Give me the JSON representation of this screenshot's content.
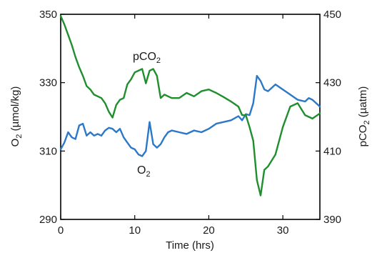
{
  "chart_data": {
    "type": "line",
    "xlabel": "Time (hrs)",
    "ylabel_left": {
      "main": "O",
      "sub": "2",
      "rest": " (µmol/kg)"
    },
    "ylabel_right": {
      "main": "pCO",
      "sub": "2",
      "rest": " (µatm)"
    },
    "xlim": [
      0,
      35
    ],
    "ylim_left": [
      290,
      350
    ],
    "ylim_right": [
      390,
      450
    ],
    "x_ticks": [
      0,
      10,
      20,
      30
    ],
    "y_ticks_left": [
      290,
      310,
      330,
      350
    ],
    "y_ticks_right": [
      390,
      410,
      430,
      450
    ],
    "grid": false,
    "colors": {
      "o2": "#2b78c9",
      "pco2": "#1f8f2e"
    },
    "annotations": [
      {
        "series": "pco2",
        "main": "pCO",
        "sub": "2"
      },
      {
        "series": "o2",
        "main": "O",
        "sub": "2"
      }
    ],
    "series": [
      {
        "key": "o2",
        "axis": "left",
        "x": [
          0,
          0.5,
          1,
          1.5,
          2,
          2.5,
          3,
          3.5,
          4,
          4.5,
          5,
          5.5,
          6,
          6.5,
          7,
          7.5,
          8,
          8.5,
          9,
          9.5,
          10,
          10.5,
          11,
          11.5,
          12,
          12.5,
          13,
          13.5,
          14,
          14.5,
          15,
          16,
          17,
          18,
          19,
          20,
          21,
          22,
          23,
          24,
          24.5,
          25,
          25.5,
          26,
          26.5,
          27,
          27.5,
          28,
          29,
          30,
          31,
          32,
          33,
          33.5,
          34,
          35
        ],
        "y": [
          310.5,
          312.5,
          315.5,
          314,
          313.5,
          317.5,
          318,
          314.5,
          315.5,
          314.5,
          315,
          314.5,
          316,
          316.8,
          316.5,
          315.5,
          316.5,
          314,
          312.5,
          311,
          310.5,
          309,
          308.5,
          310,
          318.5,
          312,
          311,
          312,
          314,
          315.5,
          316,
          315.5,
          315,
          316,
          315.5,
          316.5,
          318,
          318.5,
          319,
          320.2,
          319,
          320.8,
          320.5,
          324,
          332,
          330.5,
          328,
          327.5,
          329.5,
          328,
          326.5,
          325,
          324.5,
          325.5,
          325,
          323
        ]
      },
      {
        "key": "pco2",
        "axis": "right",
        "x": [
          0,
          0.5,
          1,
          1.5,
          2,
          2.5,
          3,
          3.5,
          4,
          4.5,
          5,
          5.5,
          6,
          6.5,
          7,
          7.5,
          8,
          8.5,
          9,
          9.5,
          10,
          10.5,
          11,
          11.5,
          12,
          12.5,
          13,
          13.5,
          14,
          15,
          16,
          17,
          18,
          19,
          20,
          21,
          22,
          23,
          24,
          24.5,
          25,
          25.5,
          26,
          26.5,
          27,
          27.5,
          28,
          29,
          30,
          31,
          32,
          33,
          34,
          35
        ],
        "y": [
          449.5,
          447,
          444,
          441,
          437.5,
          434.5,
          432,
          429,
          428,
          426.5,
          426,
          425.5,
          424,
          421.5,
          419.8,
          423.5,
          425,
          425.5,
          429.5,
          431,
          433,
          433.5,
          434,
          429.8,
          433.5,
          434,
          432,
          425.5,
          426.5,
          425.5,
          425.5,
          427,
          426,
          427.5,
          428,
          427,
          425.8,
          424.5,
          423,
          420.5,
          420.5,
          417,
          413,
          401.5,
          397,
          404.5,
          405.5,
          409,
          417,
          423,
          424,
          420.5,
          419.5,
          421
        ]
      }
    ]
  }
}
